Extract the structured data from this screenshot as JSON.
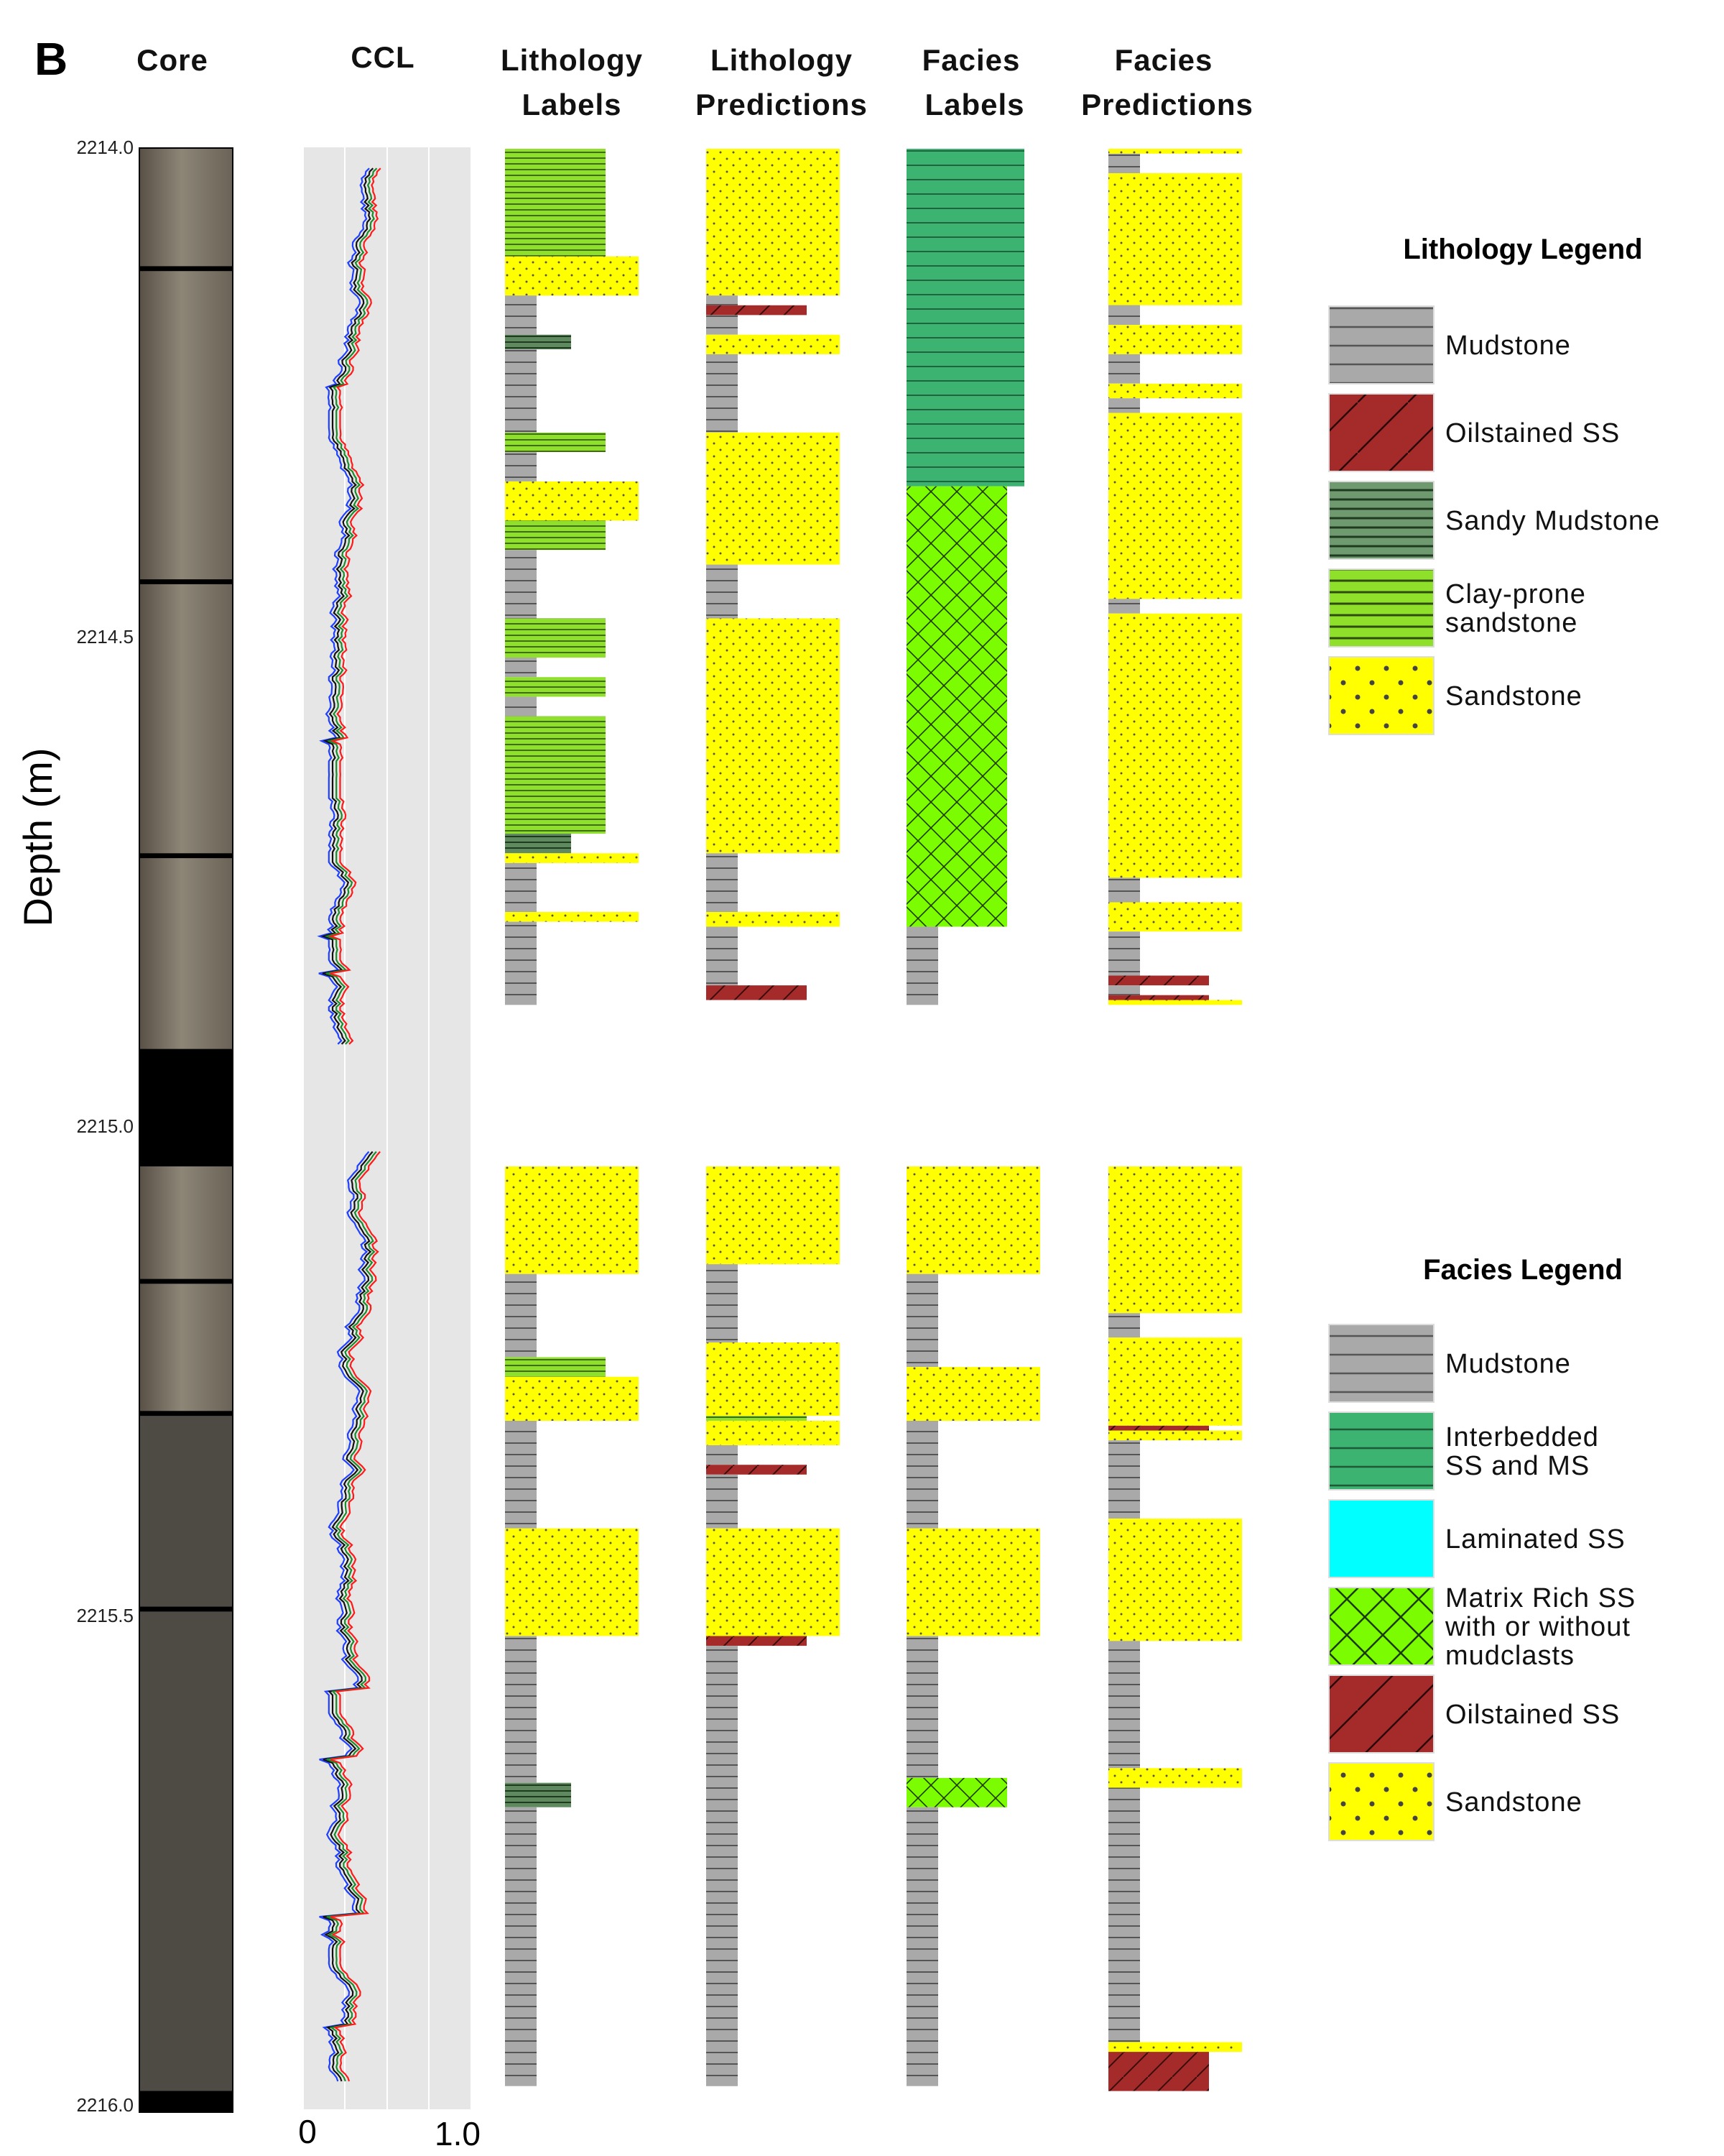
{
  "panel_label": "B",
  "headers": {
    "core": "Core",
    "ccl": "CCL",
    "lith_labels": [
      "Lithology",
      "Labels"
    ],
    "lith_pred": [
      "Lithology",
      "Predictions"
    ],
    "facies_labels": [
      "Facies",
      "Labels"
    ],
    "facies_pred": [
      "Facies",
      "Predictions"
    ]
  },
  "depth_axis": {
    "label": "Depth (m)",
    "ticks": [
      "2214.0",
      "2214.5",
      "2215.0",
      "2215.5",
      "2216.0"
    ],
    "range_m": [
      2214.0,
      2216.0
    ]
  },
  "ccl_axis": {
    "ticks": [
      "0",
      "1.0"
    ],
    "range": [
      0,
      1.0
    ]
  },
  "lithology_legend": {
    "title": "Lithology Legend",
    "items": [
      {
        "key": "mud",
        "lines": [
          "Mudstone"
        ]
      },
      {
        "key": "oil",
        "lines": [
          "Oilstained SS"
        ]
      },
      {
        "key": "smud",
        "lines": [
          "Sandy Mudstone"
        ]
      },
      {
        "key": "clay",
        "lines": [
          "Clay-prone",
          "sandstone"
        ]
      },
      {
        "key": "sand",
        "lines": [
          "Sandstone"
        ]
      }
    ]
  },
  "facies_legend": {
    "title": "Facies Legend",
    "items": [
      {
        "key": "mud",
        "lines": [
          "Mudstone"
        ]
      },
      {
        "key": "inter",
        "lines": [
          "Interbedded",
          "SS and MS"
        ]
      },
      {
        "key": "lam",
        "lines": [
          "Laminated SS"
        ]
      },
      {
        "key": "matrix",
        "lines": [
          "Matrix Rich SS",
          "with or without",
          "mudclasts"
        ]
      },
      {
        "key": "oil",
        "lines": [
          "Oilstained SS"
        ]
      },
      {
        "key": "sand",
        "lines": [
          "Sandstone"
        ]
      }
    ]
  },
  "colors": {
    "mud": "#a9a9a9",
    "oil": "#a52a2a",
    "smud": "#5f8a5f",
    "clay": "#8ee02a",
    "sand": "#ffff00",
    "inter": "#3cb371",
    "lam": "#00ffff",
    "matrix": "#7cfc00",
    "ccl_bg": "#e6e6e6",
    "ccl_lines": [
      "#1f3fff",
      "#111111",
      "#1a8a2a",
      "#ff1a1a"
    ]
  },
  "chart_data": {
    "type": "table",
    "units": "depth in m, CCL normalized 0-1",
    "depth_scale_ticks_m": [
      2214.0,
      2214.5,
      2215.0,
      2215.5,
      2216.0
    ],
    "tracks": [
      {
        "name": "Lithology Labels",
        "intervals": [
          {
            "top": 2214.0,
            "base": 2214.11,
            "class": "clay"
          },
          {
            "top": 2214.11,
            "base": 2214.15,
            "class": "sand"
          },
          {
            "top": 2214.15,
            "base": 2214.19,
            "class": "mud"
          },
          {
            "top": 2214.19,
            "base": 2214.205,
            "class": "smud"
          },
          {
            "top": 2214.205,
            "base": 2214.29,
            "class": "mud"
          },
          {
            "top": 2214.29,
            "base": 2214.31,
            "class": "clay"
          },
          {
            "top": 2214.31,
            "base": 2214.34,
            "class": "mud"
          },
          {
            "top": 2214.34,
            "base": 2214.38,
            "class": "sand"
          },
          {
            "top": 2214.38,
            "base": 2214.41,
            "class": "clay"
          },
          {
            "top": 2214.41,
            "base": 2214.48,
            "class": "mud"
          },
          {
            "top": 2214.48,
            "base": 2214.52,
            "class": "clay"
          },
          {
            "top": 2214.52,
            "base": 2214.54,
            "class": "mud"
          },
          {
            "top": 2214.54,
            "base": 2214.56,
            "class": "clay"
          },
          {
            "top": 2214.56,
            "base": 2214.58,
            "class": "mud"
          },
          {
            "top": 2214.58,
            "base": 2214.7,
            "class": "clay"
          },
          {
            "top": 2214.7,
            "base": 2214.72,
            "class": "smud"
          },
          {
            "top": 2214.72,
            "base": 2214.73,
            "class": "sand"
          },
          {
            "top": 2214.73,
            "base": 2214.78,
            "class": "mud"
          },
          {
            "top": 2214.78,
            "base": 2214.79,
            "class": "sand"
          },
          {
            "top": 2214.79,
            "base": 2214.875,
            "class": "mud"
          },
          {
            "top": 2215.04,
            "base": 2215.15,
            "class": "sand"
          },
          {
            "top": 2215.15,
            "base": 2215.235,
            "class": "mud"
          },
          {
            "top": 2215.235,
            "base": 2215.255,
            "class": "clay"
          },
          {
            "top": 2215.255,
            "base": 2215.3,
            "class": "sand"
          },
          {
            "top": 2215.3,
            "base": 2215.41,
            "class": "mud"
          },
          {
            "top": 2215.41,
            "base": 2215.52,
            "class": "sand"
          },
          {
            "top": 2215.52,
            "base": 2215.67,
            "class": "mud"
          },
          {
            "top": 2215.67,
            "base": 2215.695,
            "class": "smud"
          },
          {
            "top": 2215.695,
            "base": 2215.98,
            "class": "mud"
          }
        ]
      },
      {
        "name": "Lithology Predictions",
        "intervals": [
          {
            "top": 2214.0,
            "base": 2214.15,
            "class": "sand"
          },
          {
            "top": 2214.15,
            "base": 2214.16,
            "class": "mud"
          },
          {
            "top": 2214.16,
            "base": 2214.17,
            "class": "oil"
          },
          {
            "top": 2214.17,
            "base": 2214.19,
            "class": "mud"
          },
          {
            "top": 2214.19,
            "base": 2214.21,
            "class": "sand"
          },
          {
            "top": 2214.21,
            "base": 2214.29,
            "class": "mud"
          },
          {
            "top": 2214.29,
            "base": 2214.425,
            "class": "sand"
          },
          {
            "top": 2214.425,
            "base": 2214.48,
            "class": "mud"
          },
          {
            "top": 2214.48,
            "base": 2214.72,
            "class": "sand"
          },
          {
            "top": 2214.72,
            "base": 2214.78,
            "class": "mud"
          },
          {
            "top": 2214.78,
            "base": 2214.795,
            "class": "sand"
          },
          {
            "top": 2214.795,
            "base": 2214.855,
            "class": "mud"
          },
          {
            "top": 2214.855,
            "base": 2214.87,
            "class": "oil"
          },
          {
            "top": 2215.04,
            "base": 2215.14,
            "class": "sand"
          },
          {
            "top": 2215.14,
            "base": 2215.22,
            "class": "mud"
          },
          {
            "top": 2215.22,
            "base": 2215.295,
            "class": "sand"
          },
          {
            "top": 2215.295,
            "base": 2215.3,
            "class": "clay"
          },
          {
            "top": 2215.3,
            "base": 2215.325,
            "class": "sand"
          },
          {
            "top": 2215.325,
            "base": 2215.345,
            "class": "mud"
          },
          {
            "top": 2215.345,
            "base": 2215.355,
            "class": "oil"
          },
          {
            "top": 2215.355,
            "base": 2215.41,
            "class": "mud"
          },
          {
            "top": 2215.41,
            "base": 2215.52,
            "class": "sand"
          },
          {
            "top": 2215.52,
            "base": 2215.53,
            "class": "oil"
          },
          {
            "top": 2215.53,
            "base": 2215.98,
            "class": "mud"
          }
        ]
      },
      {
        "name": "Facies Labels",
        "intervals": [
          {
            "top": 2214.0,
            "base": 2214.345,
            "class": "inter"
          },
          {
            "top": 2214.345,
            "base": 2214.795,
            "class": "matrix"
          },
          {
            "top": 2214.795,
            "base": 2214.875,
            "class": "mud"
          },
          {
            "top": 2215.04,
            "base": 2215.15,
            "class": "sand"
          },
          {
            "top": 2215.15,
            "base": 2215.245,
            "class": "mud"
          },
          {
            "top": 2215.245,
            "base": 2215.3,
            "class": "sand"
          },
          {
            "top": 2215.3,
            "base": 2215.41,
            "class": "mud"
          },
          {
            "top": 2215.41,
            "base": 2215.52,
            "class": "sand"
          },
          {
            "top": 2215.52,
            "base": 2215.665,
            "class": "mud"
          },
          {
            "top": 2215.665,
            "base": 2215.695,
            "class": "matrix"
          },
          {
            "top": 2215.695,
            "base": 2215.98,
            "class": "mud"
          }
        ]
      },
      {
        "name": "Facies Predictions",
        "intervals": [
          {
            "top": 2214.0,
            "base": 2214.005,
            "class": "sand"
          },
          {
            "top": 2214.005,
            "base": 2214.025,
            "class": "mud"
          },
          {
            "top": 2214.025,
            "base": 2214.16,
            "class": "sand"
          },
          {
            "top": 2214.16,
            "base": 2214.18,
            "class": "mud"
          },
          {
            "top": 2214.18,
            "base": 2214.21,
            "class": "sand"
          },
          {
            "top": 2214.21,
            "base": 2214.24,
            "class": "mud"
          },
          {
            "top": 2214.24,
            "base": 2214.255,
            "class": "sand"
          },
          {
            "top": 2214.255,
            "base": 2214.27,
            "class": "mud"
          },
          {
            "top": 2214.27,
            "base": 2214.46,
            "class": "sand"
          },
          {
            "top": 2214.46,
            "base": 2214.475,
            "class": "mud"
          },
          {
            "top": 2214.475,
            "base": 2214.745,
            "class": "sand"
          },
          {
            "top": 2214.745,
            "base": 2214.77,
            "class": "mud"
          },
          {
            "top": 2214.77,
            "base": 2214.8,
            "class": "sand"
          },
          {
            "top": 2214.8,
            "base": 2214.845,
            "class": "mud"
          },
          {
            "top": 2214.845,
            "base": 2214.855,
            "class": "oil"
          },
          {
            "top": 2214.855,
            "base": 2214.865,
            "class": "mud"
          },
          {
            "top": 2214.865,
            "base": 2214.87,
            "class": "oil"
          },
          {
            "top": 2214.87,
            "base": 2214.875,
            "class": "sand"
          },
          {
            "top": 2215.04,
            "base": 2215.19,
            "class": "sand"
          },
          {
            "top": 2215.19,
            "base": 2215.215,
            "class": "mud"
          },
          {
            "top": 2215.215,
            "base": 2215.305,
            "class": "sand"
          },
          {
            "top": 2215.305,
            "base": 2215.31,
            "class": "oil"
          },
          {
            "top": 2215.31,
            "base": 2215.32,
            "class": "sand"
          },
          {
            "top": 2215.32,
            "base": 2215.4,
            "class": "mud"
          },
          {
            "top": 2215.4,
            "base": 2215.525,
            "class": "sand"
          },
          {
            "top": 2215.525,
            "base": 2215.655,
            "class": "mud"
          },
          {
            "top": 2215.655,
            "base": 2215.675,
            "class": "sand"
          },
          {
            "top": 2215.675,
            "base": 2215.935,
            "class": "mud"
          },
          {
            "top": 2215.935,
            "base": 2215.945,
            "class": "sand"
          },
          {
            "top": 2215.945,
            "base": 2215.985,
            "class": "oil"
          }
        ]
      }
    ],
    "ccl_segments": [
      {
        "top": 2214.02,
        "base": 2214.915
      },
      {
        "top": 2215.025,
        "base": 2215.975
      }
    ],
    "ccl_series_count": 4
  }
}
